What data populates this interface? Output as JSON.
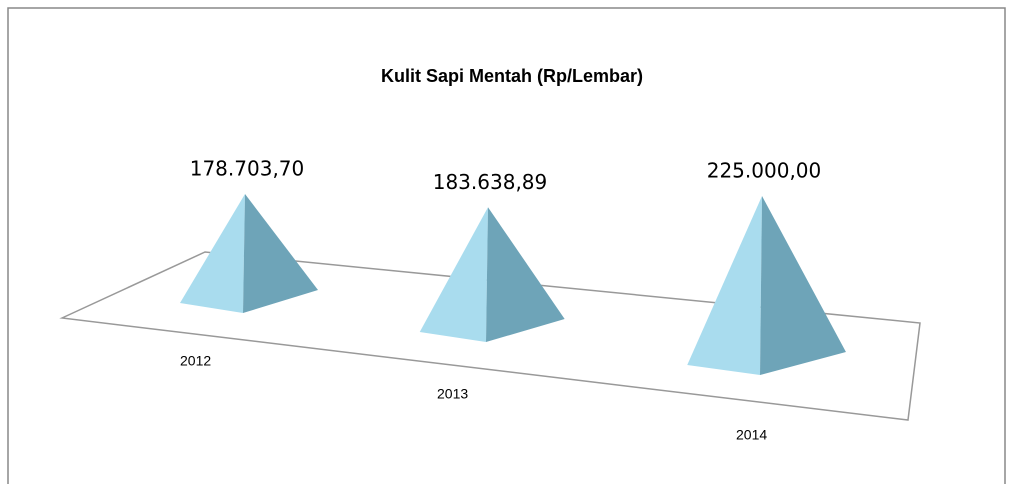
{
  "chart_data": {
    "type": "pyramid",
    "title": "Kulit Sapi Mentah (Rp/Lembar)",
    "categories": [
      "2012",
      "2013",
      "2014"
    ],
    "values": [
      178703.7,
      183638.89,
      225000.0
    ],
    "value_labels": [
      "178.703,70",
      "183.638,89",
      "225.000,00"
    ],
    "color": "#a9dcee"
  }
}
